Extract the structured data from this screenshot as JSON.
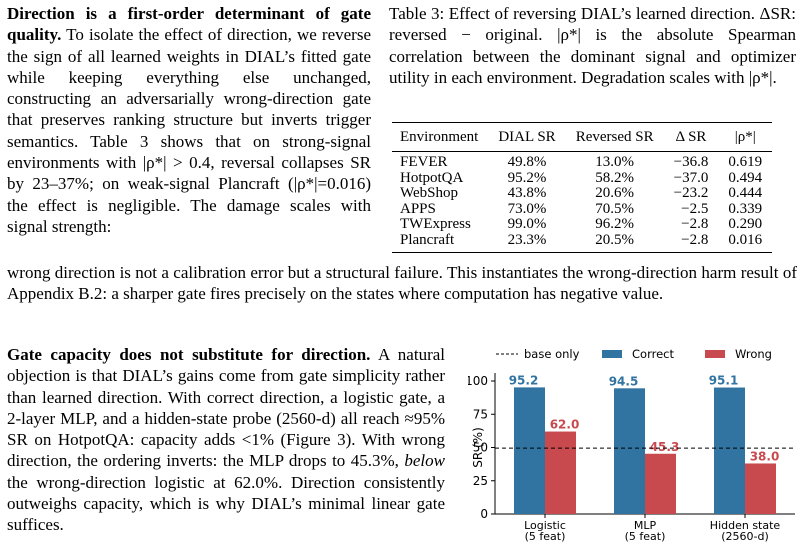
{
  "para1": {
    "heading": "Direction is a first-order determinant of gate quality.",
    "body_a": " To isolate the effect of direction, we reverse the sign of all learned weights in DIAL’s fitted gate while keeping everything else unchanged, constructing an adversarially wrong-direction gate that preserves ranking structure but inverts trigger semantics. Table 3 shows that on strong-signal environments with |ρ*| > 0.4, reversal collapses SR by 23–37%; on weak-signal Plancraft (|ρ*|=0.016) the effect is negligible. The damage scales with signal strength:",
    "body_b": "wrong direction is not a calibration error but a structural failure. This instantiates the wrong-direction harm result of Appendix B.2: a sharper gate fires precisely on the states where computation has negative value."
  },
  "table_caption": "Table 3: Effect of reversing DIAL’s learned direction. ΔSR: reversed − original. |ρ*| is the absolute Spearman correlation between the dominant signal and optimizer utility in each environment. Degradation scales with |ρ*|.",
  "table": {
    "headers": [
      "Environment",
      "DIAL SR",
      "Reversed SR",
      "Δ SR",
      "|ρ*|"
    ],
    "rows": [
      [
        "FEVER",
        "49.8%",
        "13.0%",
        "−36.8",
        "0.619"
      ],
      [
        "HotpotQA",
        "95.2%",
        "58.2%",
        "−37.0",
        "0.494"
      ],
      [
        "WebShop",
        "43.8%",
        "20.6%",
        "−23.2",
        "0.444"
      ],
      [
        "APPS",
        "73.0%",
        "70.5%",
        "−2.5",
        "0.339"
      ],
      [
        "TWExpress",
        "99.0%",
        "96.2%",
        "−2.8",
        "0.290"
      ],
      [
        "Plancraft",
        "23.3%",
        "20.5%",
        "−2.8",
        "0.016"
      ]
    ]
  },
  "para2": {
    "heading": "Gate capacity does not substitute for direction.",
    "body_a": " A natural objection is that DIAL’s gains come from gate simplicity rather than learned direction. With correct direction, a logistic gate, a 2-layer MLP, and a hidden-state probe (2560-d) all reach ≈95% SR on HotpotQA: capacity adds <1% (Figure 3). With wrong direction, the ordering inverts: the MLP drops to 45.3%, ",
    "emph": "below",
    "body_b": " the wrong-direction logistic at 62.0%. Direction consistently outweighs capacity, which is why DIAL’s minimal linear gate suffices."
  },
  "chart_data": {
    "type": "bar",
    "categories": [
      [
        "Logistic",
        "(5 feat)"
      ],
      [
        "MLP",
        "(5 feat)"
      ],
      [
        "Hidden state",
        "(2560-d)"
      ]
    ],
    "series": [
      {
        "name": "Correct",
        "values": [
          95.2,
          94.5,
          95.1
        ],
        "color": "#3274A1"
      },
      {
        "name": "Wrong",
        "values": [
          62.0,
          45.3,
          38.0
        ],
        "color": "#C84A4F"
      }
    ],
    "baseline": {
      "name": "base only",
      "value": 49.5
    },
    "ylabel": "SR (%)",
    "ylim": [
      0,
      100
    ],
    "yticks": [
      0,
      25,
      50,
      75,
      100
    ],
    "legend": "top"
  }
}
